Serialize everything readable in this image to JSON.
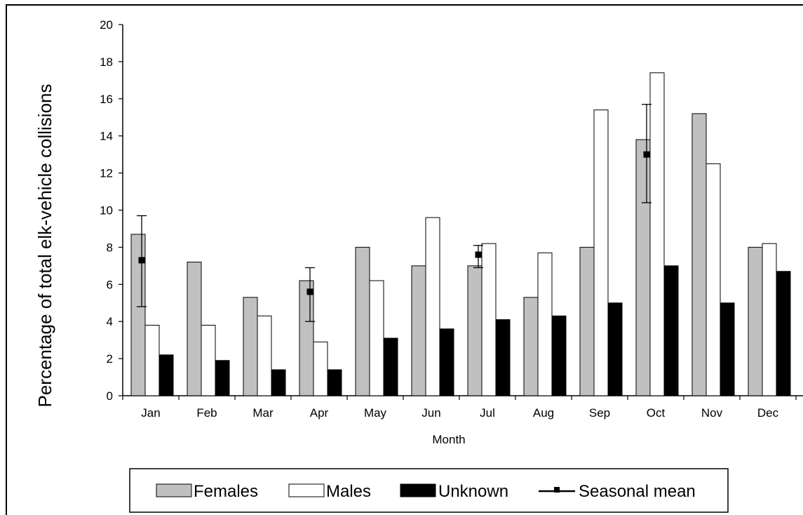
{
  "chart_data": {
    "type": "bar",
    "xlabel": "Month",
    "ylabel": "Percentage of total elk-vehicle collisions",
    "ylim": [
      0,
      20
    ],
    "yticks": [
      0,
      2,
      4,
      6,
      8,
      10,
      12,
      14,
      16,
      18,
      20
    ],
    "categories": [
      "Jan",
      "Feb",
      "Mar",
      "Apr",
      "May",
      "Jun",
      "Jul",
      "Aug",
      "Sep",
      "Oct",
      "Nov",
      "Dec"
    ],
    "series": [
      {
        "name": "Females",
        "color": "#c0c0c0",
        "values": [
          8.7,
          7.2,
          5.3,
          6.2,
          8.0,
          7.0,
          7.0,
          5.3,
          8.0,
          13.8,
          15.2,
          8.0
        ]
      },
      {
        "name": "Males",
        "color": "#ffffff",
        "values": [
          3.8,
          3.8,
          4.3,
          2.9,
          6.2,
          9.6,
          8.2,
          7.7,
          15.4,
          17.4,
          12.5,
          8.2
        ]
      },
      {
        "name": "Unknown",
        "color": "#000000",
        "values": [
          2.2,
          1.9,
          1.4,
          1.4,
          3.1,
          3.6,
          4.1,
          4.3,
          5.0,
          7.0,
          5.0,
          6.7
        ]
      }
    ],
    "seasonal_mean": {
      "name": "Seasonal mean",
      "points": [
        {
          "month": "Jan",
          "mean": 7.3,
          "low": 4.8,
          "high": 9.7
        },
        {
          "month": "Apr",
          "mean": 5.6,
          "low": 4.0,
          "high": 6.9
        },
        {
          "month": "Jul",
          "mean": 7.6,
          "low": 6.9,
          "high": 8.1
        },
        {
          "month": "Oct",
          "mean": 13.0,
          "low": 10.4,
          "high": 15.7
        }
      ]
    },
    "legend": {
      "position": "bottom",
      "entries": [
        "Females",
        "Males",
        "Unknown",
        "Seasonal mean"
      ]
    },
    "grid": false
  }
}
